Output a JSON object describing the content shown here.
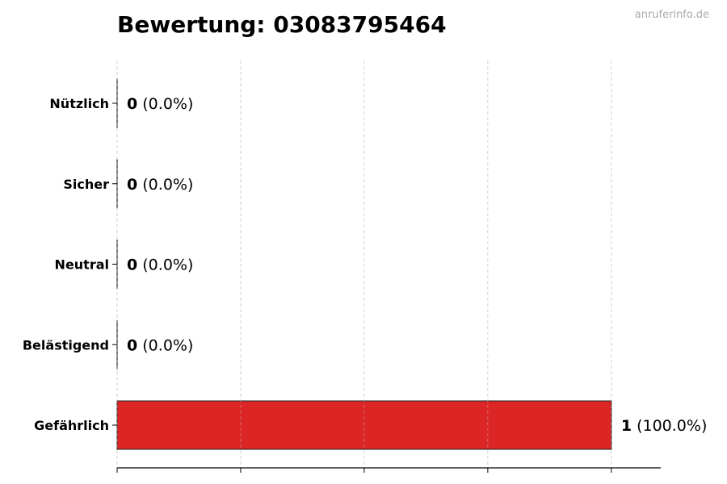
{
  "chart_data": {
    "type": "bar",
    "orientation": "horizontal",
    "title": "Bewertung: 03083795464",
    "watermark": "anruferinfo.de",
    "categories": [
      "Nützlich",
      "Sicher",
      "Neutral",
      "Belästigend",
      "Gefährlich"
    ],
    "values": [
      0,
      0,
      0,
      0,
      1
    ],
    "percent_labels": [
      "(0.0%)",
      "(0.0%)",
      "(0.0%)",
      "(0.0%)",
      "(100.0%)"
    ],
    "colors": [
      "#dc2626",
      "#dc2626",
      "#dc2626",
      "#dc2626",
      "#dc2626"
    ],
    "edge_color": "#222222",
    "xlabel": "",
    "ylabel": "",
    "xlim": [
      0,
      1.1
    ],
    "x_ticks": [
      0,
      0.25,
      0.5,
      0.75,
      1.0
    ],
    "x_tick_labels_shown": false,
    "grid": "x dashed",
    "legend": "none"
  }
}
